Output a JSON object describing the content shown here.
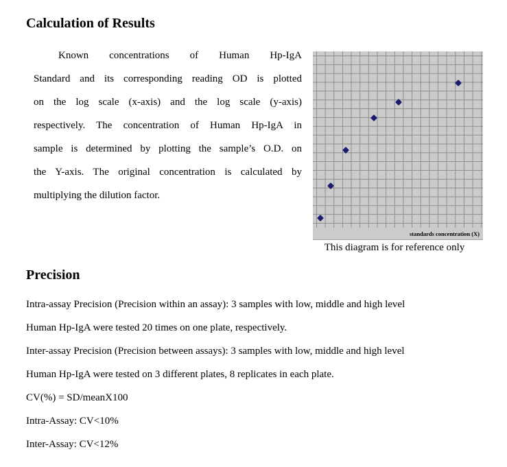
{
  "calculation": {
    "heading": "Calculation of Results",
    "paragraph_lines": [
      "Known concentrations of Human Hp-IgA",
      "Standard and its corresponding reading OD is plotted",
      "on the log scale (x-axis) and the log scale (y-axis)",
      "respectively. The concentration of Human Hp-IgA in",
      "sample is determined by plotting the sample’s O.D. on",
      "the Y-axis. The original concentration is calculated by",
      "multiplying the dilution factor."
    ]
  },
  "chart": {
    "axis_label": "standards concentration (X)",
    "caption": "This diagram is for reference only",
    "colors": {
      "plot_background": "#cbcbcb",
      "grid_line": "#8d8d8d",
      "point": "#1b1b6d"
    }
  },
  "chart_data": {
    "type": "scatter",
    "title": "",
    "xlabel": "standards concentration (X)",
    "ylabel": "",
    "x_scale": "log (no numeric tick labels shown)",
    "y_scale": "log (no numeric tick labels shown)",
    "grid": true,
    "legend": "none",
    "series": [
      {
        "name": "standards",
        "marker": "diamond",
        "color": "#1b1b6d",
        "points_pct": [
          {
            "x": 4.6,
            "y": 5.4
          },
          {
            "x": 10.5,
            "y": 23.7
          },
          {
            "x": 19.4,
            "y": 44.0
          },
          {
            "x": 35.9,
            "y": 62.3
          },
          {
            "x": 50.4,
            "y": 71.2
          },
          {
            "x": 85.5,
            "y": 82.1
          }
        ],
        "note": "x and y are percent of plot area measured from bottom-left; the figure shows no numeric axis values"
      }
    ]
  },
  "precision": {
    "heading": "Precision",
    "lines": [
      "Intra-assay Precision (Precision within an assay): 3 samples with low, middle and high level",
      "Human Hp-IgA were tested 20 times on one plate, respectively.",
      "Inter-assay Precision (Precision between assays): 3 samples with low, middle and high level",
      "Human Hp-IgA were tested on 3 different plates, 8 replicates in each plate.",
      "CV(%) = SD/meanX100",
      "Intra-Assay: CV<10%",
      "Inter-Assay: CV<12%"
    ]
  }
}
